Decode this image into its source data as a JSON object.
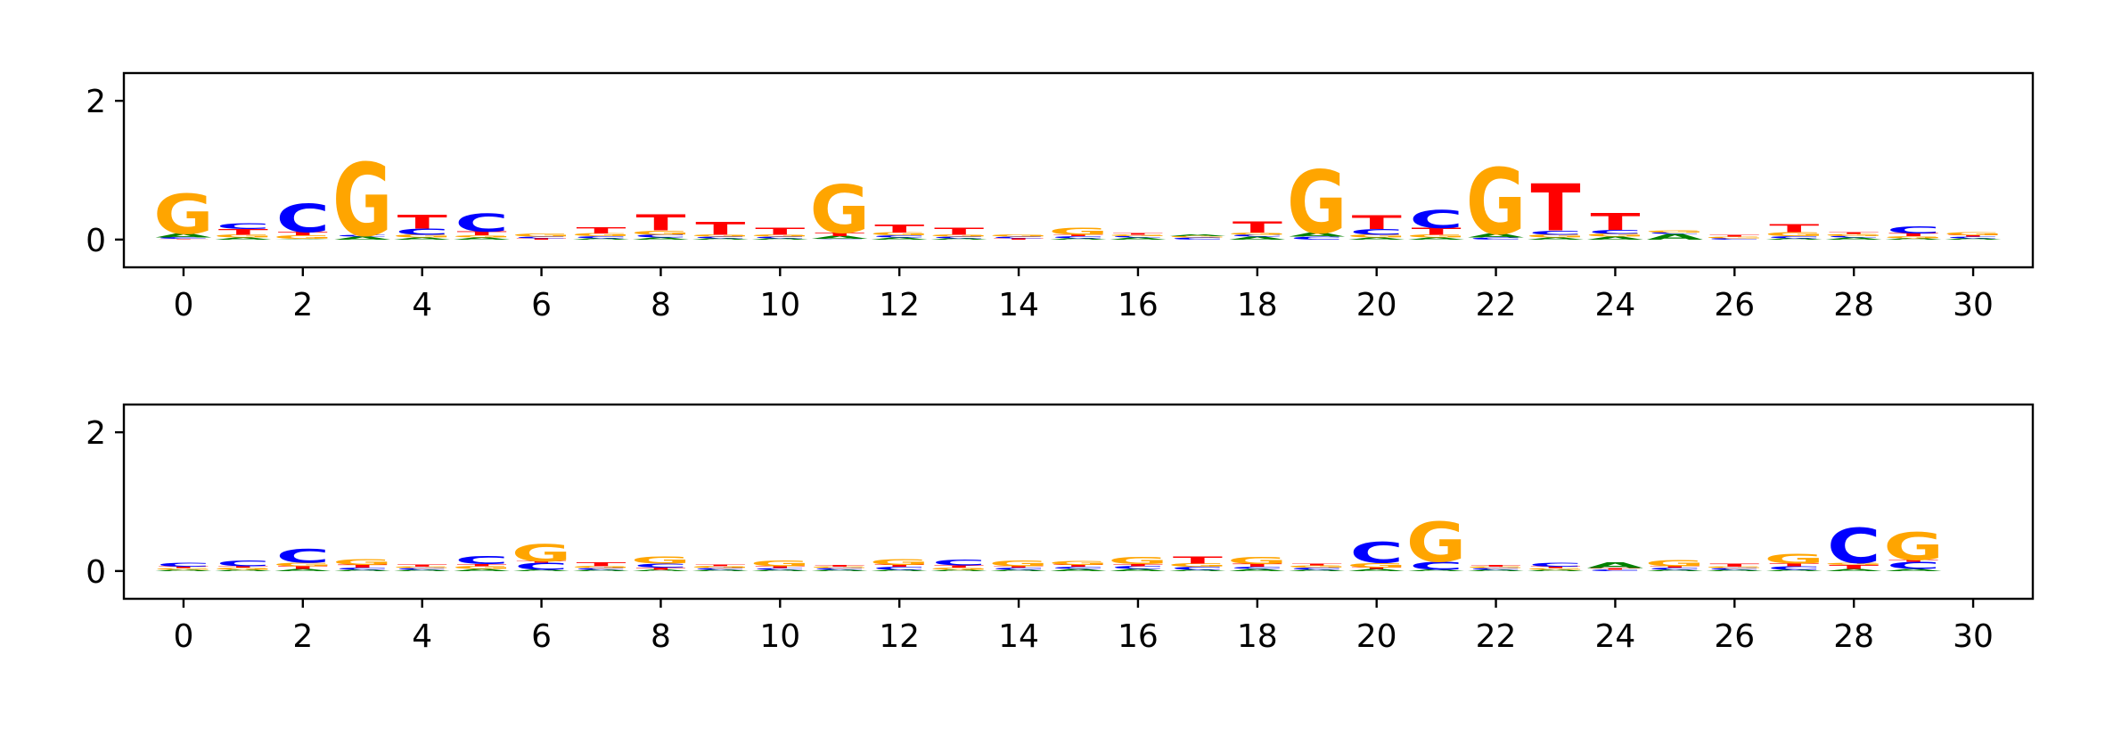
{
  "colors": {
    "A": "#008000",
    "C": "#0000ff",
    "G": "#ffa500",
    "T": "#ff0000"
  },
  "chart_data": [
    {
      "type": "sequence-logo",
      "xlim": [
        -1,
        31
      ],
      "ylim": [
        -0.4,
        2.4
      ],
      "xticks": [
        0,
        2,
        4,
        6,
        8,
        10,
        12,
        14,
        16,
        18,
        20,
        22,
        24,
        26,
        28,
        30
      ],
      "yticks": [
        0,
        2
      ],
      "x_tick_labels": [
        "0",
        "2",
        "4",
        "6",
        "8",
        "10",
        "12",
        "14",
        "16",
        "18",
        "20",
        "22",
        "24",
        "26",
        "28",
        "30"
      ],
      "y_tick_labels": [
        "0",
        "2"
      ],
      "positions": [
        [
          [
            "T",
            0.01
          ],
          [
            "C",
            0.02
          ],
          [
            "A",
            0.06
          ],
          [
            "G",
            0.58
          ]
        ],
        [
          [
            "A",
            0.03
          ],
          [
            "G",
            0.04
          ],
          [
            "T",
            0.08
          ],
          [
            "C",
            0.08
          ]
        ],
        [
          [
            "A",
            0.01
          ],
          [
            "G",
            0.05
          ],
          [
            "T",
            0.05
          ],
          [
            "C",
            0.41
          ]
        ],
        [
          [
            "A",
            0.04
          ],
          [
            "C",
            0.02
          ],
          [
            "G",
            1.05
          ]
        ],
        [
          [
            "A",
            0.03
          ],
          [
            "G",
            0.04
          ],
          [
            "C",
            0.09
          ],
          [
            "T",
            0.2
          ]
        ],
        [
          [
            "A",
            0.03
          ],
          [
            "G",
            0.03
          ],
          [
            "T",
            0.06
          ],
          [
            "C",
            0.26
          ]
        ],
        [
          [
            "T",
            0.02
          ],
          [
            "C",
            0.02
          ],
          [
            "G",
            0.04
          ]
        ],
        [
          [
            "A",
            0.02
          ],
          [
            "C",
            0.03
          ],
          [
            "G",
            0.04
          ],
          [
            "T",
            0.09
          ]
        ],
        [
          [
            "A",
            0.03
          ],
          [
            "C",
            0.04
          ],
          [
            "G",
            0.06
          ],
          [
            "T",
            0.23
          ]
        ],
        [
          [
            "A",
            0.02
          ],
          [
            "C",
            0.02
          ],
          [
            "G",
            0.03
          ],
          [
            "T",
            0.18
          ]
        ],
        [
          [
            "A",
            0.02
          ],
          [
            "C",
            0.02
          ],
          [
            "G",
            0.03
          ],
          [
            "T",
            0.1
          ]
        ],
        [
          [
            "C",
            0.01
          ],
          [
            "A",
            0.04
          ],
          [
            "T",
            0.05
          ],
          [
            "G",
            0.69
          ]
        ],
        [
          [
            "A",
            0.03
          ],
          [
            "C",
            0.03
          ],
          [
            "G",
            0.04
          ],
          [
            "T",
            0.12
          ]
        ],
        [
          [
            "A",
            0.02
          ],
          [
            "C",
            0.02
          ],
          [
            "G",
            0.03
          ],
          [
            "T",
            0.1
          ]
        ],
        [
          [
            "T",
            0.02
          ],
          [
            "C",
            0.02
          ],
          [
            "G",
            0.03
          ]
        ],
        [
          [
            "A",
            0.02
          ],
          [
            "C",
            0.03
          ],
          [
            "T",
            0.02
          ],
          [
            "G",
            0.1
          ]
        ],
        [
          [
            "A",
            0.03
          ],
          [
            "C",
            0.02
          ],
          [
            "G",
            0.02
          ],
          [
            "T",
            0.02
          ]
        ],
        [
          [
            "C",
            0.03
          ],
          [
            "G",
            0.02
          ],
          [
            "A",
            0.02
          ]
        ],
        [
          [
            "A",
            0.04
          ],
          [
            "C",
            0.03
          ],
          [
            "G",
            0.03
          ],
          [
            "T",
            0.16
          ]
        ],
        [
          [
            "C",
            0.04
          ],
          [
            "A",
            0.06
          ],
          [
            "G",
            0.91
          ]
        ],
        [
          [
            "A",
            0.03
          ],
          [
            "G",
            0.04
          ],
          [
            "C",
            0.08
          ],
          [
            "T",
            0.2
          ]
        ],
        [
          [
            "A",
            0.03
          ],
          [
            "G",
            0.04
          ],
          [
            "T",
            0.1
          ],
          [
            "C",
            0.26
          ]
        ],
        [
          [
            "C",
            0.03
          ],
          [
            "A",
            0.06
          ],
          [
            "G",
            0.95
          ]
        ],
        [
          [
            "A",
            0.03
          ],
          [
            "G",
            0.04
          ],
          [
            "C",
            0.06
          ],
          [
            "T",
            0.68
          ]
        ],
        [
          [
            "A",
            0.04
          ],
          [
            "G",
            0.04
          ],
          [
            "C",
            0.06
          ],
          [
            "T",
            0.24
          ]
        ],
        [
          [
            "A",
            0.08
          ],
          [
            "C",
            0.02
          ],
          [
            "G",
            0.03
          ]
        ],
        [
          [
            "C",
            0.02
          ],
          [
            "G",
            0.02
          ],
          [
            "T",
            0.02
          ]
        ],
        [
          [
            "A",
            0.02
          ],
          [
            "C",
            0.03
          ],
          [
            "G",
            0.06
          ],
          [
            "T",
            0.12
          ]
        ],
        [
          [
            "A",
            0.03
          ],
          [
            "C",
            0.02
          ],
          [
            "G",
            0.03
          ],
          [
            "T",
            0.02
          ]
        ],
        [
          [
            "A",
            0.02
          ],
          [
            "G",
            0.03
          ],
          [
            "T",
            0.04
          ],
          [
            "C",
            0.1
          ]
        ],
        [
          [
            "A",
            0.02
          ],
          [
            "C",
            0.02
          ],
          [
            "T",
            0.02
          ],
          [
            "G",
            0.04
          ]
        ]
      ]
    },
    {
      "type": "sequence-logo",
      "xlim": [
        -1,
        31
      ],
      "ylim": [
        -0.4,
        2.4
      ],
      "xticks": [
        0,
        2,
        4,
        6,
        8,
        10,
        12,
        14,
        16,
        18,
        20,
        22,
        24,
        26,
        28,
        30
      ],
      "yticks": [
        0,
        2
      ],
      "x_tick_labels": [
        "0",
        "2",
        "4",
        "6",
        "8",
        "10",
        "12",
        "14",
        "16",
        "18",
        "20",
        "22",
        "24",
        "26",
        "28",
        "30"
      ],
      "y_tick_labels": [
        "0",
        "2"
      ],
      "positions": [
        [
          [
            "A",
            0.02
          ],
          [
            "G",
            0.02
          ],
          [
            "T",
            0.02
          ],
          [
            "C",
            0.06
          ]
        ],
        [
          [
            "A",
            0.02
          ],
          [
            "G",
            0.03
          ],
          [
            "T",
            0.02
          ],
          [
            "C",
            0.08
          ]
        ],
        [
          [
            "A",
            0.03
          ],
          [
            "T",
            0.04
          ],
          [
            "G",
            0.05
          ],
          [
            "C",
            0.2
          ]
        ],
        [
          [
            "A",
            0.02
          ],
          [
            "C",
            0.03
          ],
          [
            "T",
            0.04
          ],
          [
            "G",
            0.08
          ]
        ],
        [
          [
            "A",
            0.02
          ],
          [
            "C",
            0.02
          ],
          [
            "G",
            0.02
          ],
          [
            "T",
            0.03
          ]
        ],
        [
          [
            "A",
            0.03
          ],
          [
            "G",
            0.04
          ],
          [
            "T",
            0.03
          ],
          [
            "C",
            0.12
          ]
        ],
        [
          [
            "A",
            0.02
          ],
          [
            "C",
            0.1
          ],
          [
            "T",
            0.02
          ],
          [
            "G",
            0.25
          ]
        ],
        [
          [
            "A",
            0.02
          ],
          [
            "C",
            0.02
          ],
          [
            "G",
            0.03
          ],
          [
            "T",
            0.06
          ]
        ],
        [
          [
            "A",
            0.02
          ],
          [
            "T",
            0.03
          ],
          [
            "C",
            0.06
          ],
          [
            "G",
            0.1
          ]
        ],
        [
          [
            "A",
            0.02
          ],
          [
            "C",
            0.02
          ],
          [
            "G",
            0.03
          ],
          [
            "T",
            0.02
          ]
        ],
        [
          [
            "A",
            0.02
          ],
          [
            "C",
            0.02
          ],
          [
            "T",
            0.03
          ],
          [
            "G",
            0.08
          ]
        ],
        [
          [
            "A",
            0.02
          ],
          [
            "C",
            0.02
          ],
          [
            "G",
            0.02
          ],
          [
            "T",
            0.02
          ]
        ],
        [
          [
            "A",
            0.02
          ],
          [
            "C",
            0.04
          ],
          [
            "T",
            0.03
          ],
          [
            "G",
            0.08
          ]
        ],
        [
          [
            "A",
            0.02
          ],
          [
            "G",
            0.03
          ],
          [
            "T",
            0.03
          ],
          [
            "C",
            0.08
          ]
        ],
        [
          [
            "A",
            0.02
          ],
          [
            "C",
            0.03
          ],
          [
            "T",
            0.02
          ],
          [
            "G",
            0.08
          ]
        ],
        [
          [
            "A",
            0.03
          ],
          [
            "C",
            0.03
          ],
          [
            "T",
            0.03
          ],
          [
            "G",
            0.06
          ]
        ],
        [
          [
            "A",
            0.03
          ],
          [
            "C",
            0.04
          ],
          [
            "T",
            0.03
          ],
          [
            "G",
            0.1
          ]
        ],
        [
          [
            "A",
            0.02
          ],
          [
            "C",
            0.04
          ],
          [
            "G",
            0.05
          ],
          [
            "T",
            0.1
          ]
        ],
        [
          [
            "A",
            0.03
          ],
          [
            "C",
            0.03
          ],
          [
            "T",
            0.04
          ],
          [
            "G",
            0.1
          ]
        ],
        [
          [
            "A",
            0.02
          ],
          [
            "C",
            0.03
          ],
          [
            "G",
            0.03
          ],
          [
            "T",
            0.02
          ]
        ],
        [
          [
            "A",
            0.03
          ],
          [
            "T",
            0.02
          ],
          [
            "G",
            0.07
          ],
          [
            "C",
            0.3
          ]
        ],
        [
          [
            "A",
            0.02
          ],
          [
            "C",
            0.12
          ],
          [
            "G",
            0.58
          ]
        ],
        [
          [
            "A",
            0.02
          ],
          [
            "C",
            0.02
          ],
          [
            "G",
            0.02
          ],
          [
            "T",
            0.02
          ]
        ],
        [
          [
            "A",
            0.02
          ],
          [
            "G",
            0.02
          ],
          [
            "T",
            0.02
          ],
          [
            "C",
            0.06
          ]
        ],
        [
          [
            "C",
            0.02
          ],
          [
            "T",
            0.02
          ],
          [
            "A",
            0.08
          ]
        ],
        [
          [
            "A",
            0.02
          ],
          [
            "C",
            0.03
          ],
          [
            "T",
            0.02
          ],
          [
            "G",
            0.09
          ]
        ],
        [
          [
            "A",
            0.02
          ],
          [
            "C",
            0.02
          ],
          [
            "G",
            0.02
          ],
          [
            "T",
            0.04
          ]
        ],
        [
          [
            "A",
            0.02
          ],
          [
            "C",
            0.05
          ],
          [
            "T",
            0.04
          ],
          [
            "G",
            0.14
          ]
        ],
        [
          [
            "A",
            0.03
          ],
          [
            "T",
            0.06
          ],
          [
            "G",
            0.03
          ],
          [
            "C",
            0.51
          ]
        ],
        [
          [
            "A",
            0.03
          ],
          [
            "C",
            0.1
          ],
          [
            "T",
            0.03
          ],
          [
            "G",
            0.4
          ]
        ]
      ]
    }
  ]
}
